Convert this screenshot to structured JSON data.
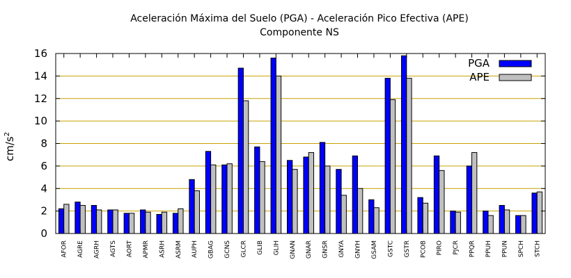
{
  "chart_data": {
    "type": "bar",
    "title": "Aceleración Máxima del Suelo (PGA) -  Aceleración Pico Efectiva (APE)",
    "subtitle": "Componente NS",
    "ylabel": "cm/s",
    "ylabel_superscript": "2",
    "xlabel": "",
    "ylim": [
      0,
      16
    ],
    "yticks": [
      0,
      2,
      4,
      6,
      8,
      10,
      12,
      14,
      16
    ],
    "grid": "horizontal",
    "legend_position": "top-right",
    "categories": [
      "AFOR",
      "AGRE",
      "AGRH",
      "AGTS",
      "AORT",
      "APMR",
      "ASRH",
      "ASRM",
      "AUPH",
      "GBAG",
      "GCNS",
      "GLCR",
      "GLIB",
      "GLIH",
      "GNAN",
      "GNAR",
      "GNSR",
      "GNYA",
      "GNYH",
      "GSAM",
      "GSTC",
      "GSTR",
      "PCOB",
      "PIRO",
      "PJCR",
      "PPQR",
      "PPUH",
      "PPUN",
      "SPCH",
      "STCH"
    ],
    "series": [
      {
        "name": "PGA",
        "color": "#0000ff",
        "values": [
          2.2,
          2.8,
          2.5,
          2.1,
          1.8,
          2.1,
          1.7,
          1.8,
          4.8,
          7.3,
          6.1,
          14.7,
          7.7,
          15.6,
          6.5,
          6.8,
          8.1,
          5.7,
          6.9,
          3.0,
          13.8,
          15.8,
          3.2,
          6.9,
          2.0,
          6.0,
          2.0,
          2.5,
          1.6,
          3.6
        ]
      },
      {
        "name": "APE",
        "color": "#c0c0c0",
        "values": [
          2.6,
          2.5,
          2.1,
          2.1,
          1.8,
          1.9,
          1.9,
          2.2,
          3.8,
          6.1,
          6.2,
          11.8,
          6.4,
          14.0,
          5.7,
          7.2,
          6.0,
          3.4,
          4.0,
          2.3,
          11.9,
          13.8,
          2.7,
          5.6,
          1.9,
          7.2,
          1.6,
          2.1,
          1.6,
          3.7
        ]
      }
    ]
  }
}
